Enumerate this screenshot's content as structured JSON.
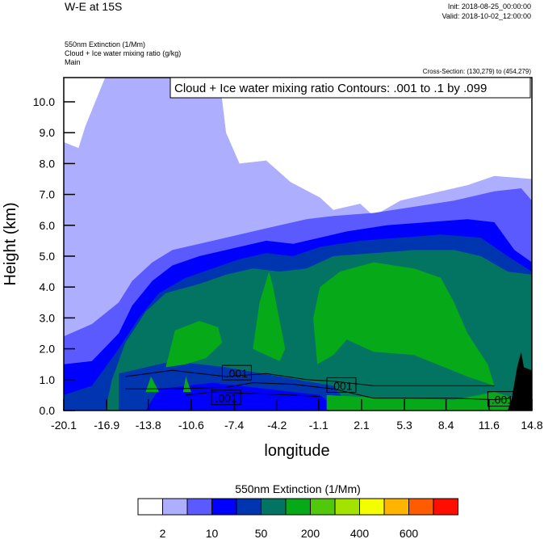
{
  "header": {
    "title": "W-E at 15S",
    "init": "Init: 2018-08-25_00:00:00",
    "valid": "Valid: 2018-10-02_12:00:00",
    "fields": [
      "550nm Extinction   (1/Mm)",
      "Cloud + Ice water mixing ratio   (g/kg)",
      "Main"
    ],
    "cross_section": "Cross-Section: (130,279) to (454,279)"
  },
  "chart_data": {
    "type": "heatmap",
    "title": "W-E at 15S",
    "contour_label": "Cloud + Ice water mixing ratio Contours: .001 to .1 by .099",
    "contour_value_labels": [
      ".001",
      ".001",
      ".001",
      ".001"
    ],
    "xlabel": "longitude",
    "ylabel": "Height (km)",
    "xlim": [
      -20.1,
      14.8
    ],
    "ylim": [
      0,
      10.8
    ],
    "x_ticks": [
      "-20.1",
      "-16.9",
      "-13.8",
      "-10.6",
      "-7.4",
      "-4.2",
      "-1.1",
      "2.1",
      "5.3",
      "8.4",
      "11.6",
      "14.8"
    ],
    "y_ticks": [
      "0.0",
      "1.0",
      "2.0",
      "3.0",
      "4.0",
      "5.0",
      "6.0",
      "7.0",
      "8.0",
      "9.0",
      "10.0"
    ],
    "colorbar": {
      "title": "550nm Extinction  (1/Mm)",
      "colors": [
        "#ffffff",
        "#aeaefe",
        "#5a5aff",
        "#0000ff",
        "#0035b0",
        "#047462",
        "#06aa18",
        "#52c80c",
        "#a4e200",
        "#f4fe00",
        "#ffb400",
        "#ff5c00",
        "#ff0e00"
      ],
      "labels": [
        "2",
        "10",
        "50",
        "200",
        "400",
        "600"
      ]
    },
    "regions": [
      {
        "level": 1,
        "top": [
          [
            -20.1,
            8.7
          ],
          [
            -19,
            8.5
          ],
          [
            -18.5,
            9.2
          ],
          [
            -17,
            10.8
          ],
          [
            -8.5,
            10.8
          ],
          [
            -8,
            9
          ],
          [
            -7,
            8
          ],
          [
            -5,
            8.1
          ],
          [
            -3.2,
            7.4
          ],
          [
            -1,
            6.9
          ],
          [
            0,
            6.5
          ],
          [
            2,
            6.7
          ],
          [
            3,
            6.3
          ],
          [
            5,
            6.8
          ],
          [
            8,
            7.1
          ],
          [
            10,
            7.3
          ],
          [
            12,
            7.6
          ],
          [
            14.8,
            7.5
          ]
        ]
      },
      {
        "level": 2,
        "top": [
          [
            -20.1,
            2.4
          ],
          [
            -18,
            2.8
          ],
          [
            -16,
            3.5
          ],
          [
            -15,
            4.2
          ],
          [
            -13.5,
            4.8
          ],
          [
            -12,
            5.2
          ],
          [
            -10,
            5.4
          ],
          [
            -8,
            5.6
          ],
          [
            -6,
            5.8
          ],
          [
            -4,
            6
          ],
          [
            -2,
            6.2
          ],
          [
            0,
            6.3
          ],
          [
            3,
            6.4
          ],
          [
            6,
            6.6
          ],
          [
            9,
            6.8
          ],
          [
            12,
            7.1
          ],
          [
            14,
            7.2
          ],
          [
            14.8,
            6.8
          ]
        ]
      },
      {
        "level": 3,
        "top": [
          [
            -20.1,
            1.5
          ],
          [
            -18,
            1.6
          ],
          [
            -16,
            2.5
          ],
          [
            -15,
            3.4
          ],
          [
            -13.5,
            4.2
          ],
          [
            -12,
            4.7
          ],
          [
            -10,
            5
          ],
          [
            -7,
            5.3
          ],
          [
            -5,
            5.5
          ],
          [
            -3,
            5.4
          ],
          [
            -1,
            5.6
          ],
          [
            1,
            5.8
          ],
          [
            4,
            6
          ],
          [
            7,
            6.1
          ],
          [
            10,
            6.2
          ],
          [
            12,
            6.1
          ],
          [
            13.5,
            5.2
          ],
          [
            14.8,
            4.8
          ]
        ]
      },
      {
        "level": 4,
        "top": [
          [
            -20.1,
            0.5
          ],
          [
            -18,
            0.8
          ],
          [
            -16,
            2
          ],
          [
            -14.5,
            3
          ],
          [
            -13,
            3.8
          ],
          [
            -11,
            4.3
          ],
          [
            -9,
            4.6
          ],
          [
            -7,
            4.9
          ],
          [
            -5,
            5.1
          ],
          [
            -3,
            5
          ],
          [
            -1,
            5.3
          ],
          [
            2,
            5.5
          ],
          [
            5,
            5.6
          ],
          [
            8,
            5.7
          ],
          [
            11,
            5.6
          ],
          [
            13,
            5
          ],
          [
            14.8,
            4.5
          ]
        ]
      },
      {
        "level": 5,
        "top": [
          [
            -17,
            0
          ],
          [
            -16.5,
            1
          ],
          [
            -15.5,
            2.2
          ],
          [
            -14,
            3.2
          ],
          [
            -12.5,
            3.8
          ],
          [
            -10,
            4.1
          ],
          [
            -8,
            4.4
          ],
          [
            -6,
            4.6
          ],
          [
            -4,
            4.5
          ],
          [
            -2,
            4.6
          ],
          [
            0,
            5
          ],
          [
            3,
            5.1
          ],
          [
            6,
            5.2
          ],
          [
            9,
            5.2
          ],
          [
            11,
            5
          ],
          [
            13,
            4.5
          ],
          [
            14.8,
            4.4
          ]
        ]
      }
    ],
    "patches": [
      {
        "level": 4,
        "poly": [
          [
            -16,
            0
          ],
          [
            -16,
            1.2
          ],
          [
            -12,
            1.6
          ],
          [
            -8,
            1.4
          ],
          [
            -4,
            1.1
          ],
          [
            0,
            0.8
          ],
          [
            1.5,
            0
          ]
        ]
      },
      {
        "level": 3,
        "poly": [
          [
            -14,
            0
          ],
          [
            -13,
            0.7
          ],
          [
            -9,
            0.9
          ],
          [
            -5,
            0.7
          ],
          [
            -1,
            0.5
          ],
          [
            0.5,
            0
          ]
        ]
      },
      {
        "level": 6,
        "poly": [
          [
            -1.2,
            1.5
          ],
          [
            -1.5,
            3
          ],
          [
            -1,
            4
          ],
          [
            0.5,
            4.5
          ],
          [
            3,
            4.8
          ],
          [
            6,
            4.6
          ],
          [
            8,
            4.3
          ],
          [
            9,
            3.5
          ],
          [
            10,
            2.5
          ],
          [
            11.5,
            1.5
          ],
          [
            12,
            0.8
          ],
          [
            10,
            1.1
          ],
          [
            6,
            1.8
          ],
          [
            3,
            1.9
          ],
          [
            1,
            2.3
          ],
          [
            0,
            1.8
          ]
        ]
      },
      {
        "level": 6,
        "poly": [
          [
            -5,
            1.8
          ],
          [
            -6,
            2
          ],
          [
            -5.5,
            3.5
          ],
          [
            -4.8,
            4.5
          ],
          [
            -4.5,
            4
          ],
          [
            -3.6,
            2
          ],
          [
            -4,
            1.6
          ]
        ]
      },
      {
        "level": 6,
        "poly": [
          [
            -12.5,
            1.4
          ],
          [
            -11.8,
            2.6
          ],
          [
            -10,
            2.9
          ],
          [
            -8.6,
            2.7
          ],
          [
            -8.3,
            2.2
          ],
          [
            -9.5,
            1.7
          ],
          [
            -11,
            1.5
          ]
        ]
      },
      {
        "level": 6,
        "poly": [
          [
            -0.5,
            0
          ],
          [
            -0.5,
            0.5
          ],
          [
            4,
            0.4
          ],
          [
            9,
            0.35
          ],
          [
            12,
            0.6
          ],
          [
            13.5,
            0.4
          ],
          [
            13.5,
            0
          ]
        ]
      },
      {
        "level": 6,
        "poly": [
          [
            -14,
            0.6
          ],
          [
            -13.6,
            1.1
          ],
          [
            -13,
            0.6
          ]
        ]
      },
      {
        "level": 6,
        "poly": [
          [
            -11.2,
            0.6
          ],
          [
            -11,
            1.1
          ],
          [
            -10.6,
            0.6
          ]
        ]
      }
    ],
    "terrain": [
      [
        13,
        0
      ],
      [
        13.3,
        0.4
      ],
      [
        13.7,
        1.4
      ],
      [
        14,
        1.9
      ],
      [
        14.2,
        1.4
      ],
      [
        14.8,
        1.3
      ],
      [
        14.8,
        0
      ]
    ],
    "contours": [
      [
        [
          -15.5,
          0.7
        ],
        [
          -12,
          0.7
        ],
        [
          -8,
          0.75
        ],
        [
          -6,
          0.9
        ],
        [
          -3,
          0.85
        ],
        [
          0,
          0.7
        ],
        [
          3,
          0.4
        ],
        [
          6,
          0.4
        ],
        [
          9,
          0.4
        ],
        [
          12,
          0.35
        ],
        [
          13.2,
          0.4
        ]
      ],
      [
        [
          -15.5,
          1.1
        ],
        [
          -12,
          1.3
        ],
        [
          -8,
          1.1
        ],
        [
          -5,
          1.2
        ],
        [
          -2,
          1.0
        ],
        [
          0,
          0.95
        ],
        [
          3,
          0.8
        ],
        [
          8,
          0.8
        ],
        [
          12,
          0.8
        ]
      ],
      [
        [
          -11,
          0.5
        ],
        [
          -9,
          0.6
        ],
        [
          -6,
          0.55
        ],
        [
          -3,
          0.5
        ],
        [
          -1,
          0.45
        ]
      ]
    ],
    "contour_label_positions": [
      [
        -7.2,
        1.2
      ],
      [
        -8.0,
        0.4
      ],
      [
        0.6,
        0.8
      ],
      [
        12.6,
        0.35
      ]
    ]
  }
}
